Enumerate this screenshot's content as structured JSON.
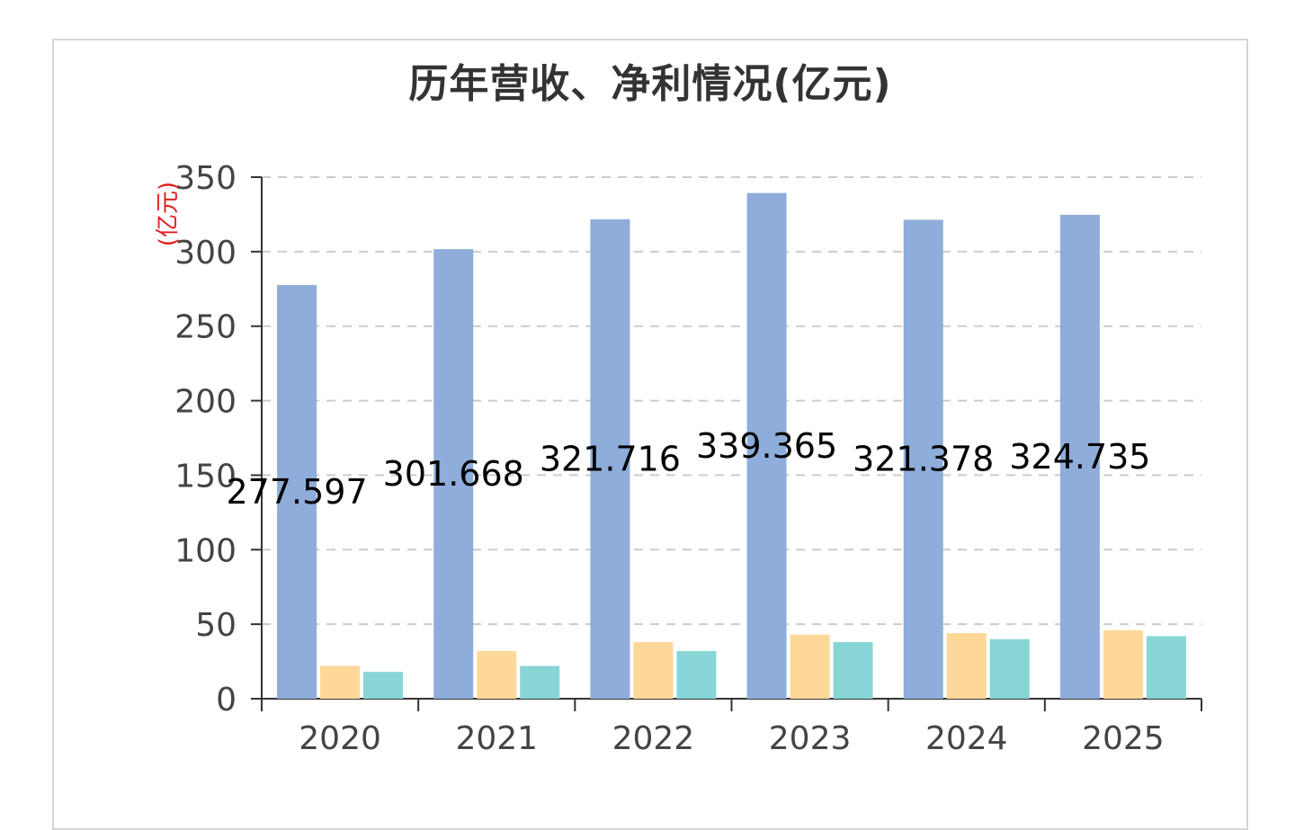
{
  "title": "历年营收、净利情况(亿元)",
  "colors": {
    "revenue": "#8eadda",
    "series2": "#fdd899",
    "series3": "#88d5d6",
    "axis": "#333333",
    "grid": "#cccccc",
    "unit": "#e02020"
  },
  "chart_data": {
    "type": "bar",
    "title": "历年营收、净利情况(亿元)",
    "ylabel": "(亿元)",
    "xlabel": "",
    "categories": [
      "2020",
      "2021",
      "2022",
      "2023",
      "2024",
      "2025"
    ],
    "ylim": [
      0,
      350
    ],
    "yticks": [
      0,
      50,
      100,
      150,
      200,
      250,
      300,
      350
    ],
    "grid": true,
    "series": [
      {
        "values": [
          277.597,
          301.668,
          321.716,
          339.365,
          321.378,
          324.735
        ],
        "color": "#8eadda",
        "labels": [
          "277.597",
          "301.668",
          "321.716",
          "339.365",
          "321.378",
          "324.735"
        ]
      },
      {
        "values": [
          22,
          32,
          38,
          43,
          44,
          46
        ],
        "color": "#fdd899"
      },
      {
        "values": [
          18,
          22,
          32,
          38,
          40,
          42
        ],
        "color": "#88d5d6"
      }
    ]
  }
}
